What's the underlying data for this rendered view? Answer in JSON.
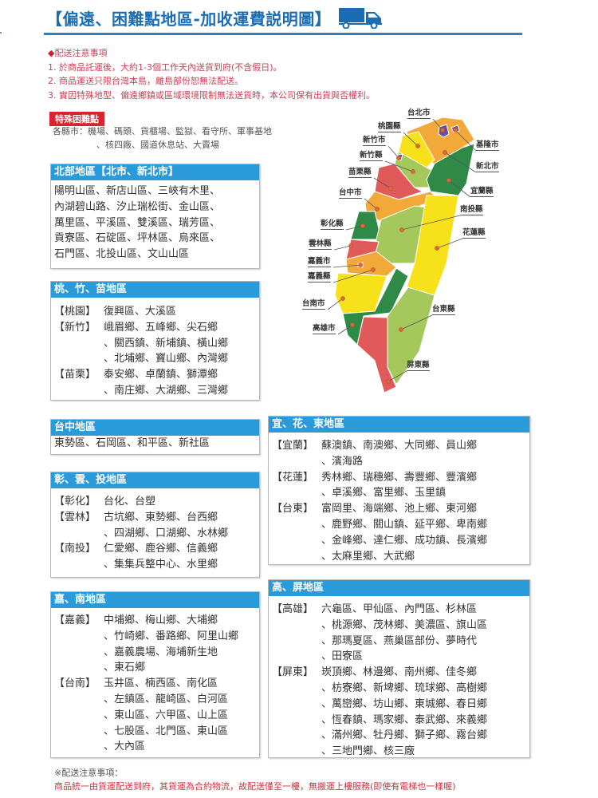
{
  "header": {
    "title": "【偏遠、困難點地區-加收運費説明圖】",
    "icon": "truck-icon"
  },
  "notes": {
    "heading": "配送注意事項",
    "items": [
      "1. 於商品託運後，大約1-3個工作天內送貨到府(不含假日)。",
      "2. 商品運送只限台灣本島，離島部份恕無法配送。",
      "3. 實因特殊地型、偏遠鄉鎮或區域環境限制無法送貨時，本公司保有出貨與否權利。"
    ]
  },
  "special": {
    "badge": "特殊困難點",
    "lines": [
      "各縣市：機場、碼頭、貨櫃場、監獄、看守所、軍事基地",
      "、核四廠、國道休息站、大賣場"
    ]
  },
  "regions": {
    "north": {
      "title": "北部地區【北市、新北市】",
      "lines": [
        "陽明山區、新店山區、三峽有木里、",
        "內湖碧山路、汐止瑞松街、金山區、",
        "萬里區、平溪區、雙溪區、瑞芳區、",
        "貢寮區、石碇區、坪林區、烏來區、",
        "石門區、北投山區、文山山區"
      ]
    },
    "tzm": {
      "title": "桃、竹、苗地區",
      "rows": [
        {
          "tag": "【桃園】",
          "text": "復興區、大溪區"
        },
        {
          "tag": "【新竹】",
          "text": "峨眉鄉、五峰鄉、尖石鄉"
        },
        {
          "tag": "",
          "text": "、關西鎮、新埔鎮、橫山鄉"
        },
        {
          "tag": "",
          "text": "、北埔鄉、寶山鄉、內灣鄉"
        },
        {
          "tag": "【苗栗】",
          "text": "泰安鄉、卓蘭鎮、獅潭鄉"
        },
        {
          "tag": "",
          "text": "、南庄鄉、大湖鄉、三灣鄉"
        }
      ]
    },
    "taichung": {
      "title": "台中地區",
      "lines": [
        "東勢區、石岡區、和平區、新社區"
      ]
    },
    "cyn": {
      "title": "彰、雲、投地區",
      "rows": [
        {
          "tag": "【彰化】",
          "text": "台化、台塑"
        },
        {
          "tag": "【雲林】",
          "text": "古坑鄉、東勢鄉、台西鄉"
        },
        {
          "tag": "",
          "text": "、四湖鄉、口湖鄉、水林鄉"
        },
        {
          "tag": "【南投】",
          "text": "仁愛鄉、鹿谷鄉、信義鄉"
        },
        {
          "tag": "",
          "text": "、集集兵整中心、水里鄉"
        }
      ]
    },
    "cn": {
      "title": "嘉、南地區",
      "rows": [
        {
          "tag": "【嘉義】",
          "text": "中埔鄉、梅山鄉、大埔鄉"
        },
        {
          "tag": "",
          "text": "、竹崎鄉、番路鄉、阿里山鄉"
        },
        {
          "tag": "",
          "text": "、嘉義農場、海埔新生地"
        },
        {
          "tag": "",
          "text": "、東石鄉"
        },
        {
          "tag": "【台南】",
          "text": "玉井區、楠西區、南化區"
        },
        {
          "tag": "",
          "text": "、左鎮區、龍崎區、白河區"
        },
        {
          "tag": "",
          "text": "、東山區、六甲區、山上區"
        },
        {
          "tag": "",
          "text": "、七股區、北門區、東山區"
        },
        {
          "tag": "",
          "text": "、大內區"
        }
      ]
    },
    "yhd": {
      "title": "宜、花、東地區",
      "rows": [
        {
          "tag": "【宜蘭】",
          "text": "蘇澳鎮、南澳鄉、大同鄉、員山鄉"
        },
        {
          "tag": "",
          "text": "、濱海路"
        },
        {
          "tag": "【花蓮】",
          "text": "秀林鄉、瑞穗鄉、壽豐鄉、豐濱鄉"
        },
        {
          "tag": "",
          "text": "、卓溪鄉、富里鄉、玉里鎮"
        },
        {
          "tag": "【台東】",
          "text": "富岡里、海端鄉、池上鄉、東河鄉"
        },
        {
          "tag": "",
          "text": "、鹿野鄉、關山鎮、延平鄉、卑南鄉"
        },
        {
          "tag": "",
          "text": "、金峰鄉、達仁鄉、成功鎮、長濱鄉"
        },
        {
          "tag": "",
          "text": "、太麻里鄉、大武鄉"
        }
      ]
    },
    "kp": {
      "title": "高、屏地區",
      "rows": [
        {
          "tag": "【高雄】",
          "text": "六龜區、甲仙區、內門區、杉林區"
        },
        {
          "tag": "",
          "text": "、桃源鄉、茂林鄉、美濃區、旗山區"
        },
        {
          "tag": "",
          "text": "、那瑪夏區、燕巢區部份、夢時代"
        },
        {
          "tag": "",
          "text": "、田寮區"
        },
        {
          "tag": "【屏東】",
          "text": "崁頂鄉、林邊鄉、南州鄉、佳冬鄉"
        },
        {
          "tag": "",
          "text": "、枋寮鄉、新埤鄉、琉球鄉、高樹鄉"
        },
        {
          "tag": "",
          "text": "、萬巒鄉、坊山鄉、東城鄉、春日鄉"
        },
        {
          "tag": "",
          "text": "、恆春鎮、瑪家鄉、泰武鄉、來義鄉"
        },
        {
          "tag": "",
          "text": "、滿州鄉、牡丹鄉、獅子鄉、霧台鄉"
        },
        {
          "tag": "",
          "text": "、三地門鄉、核三廠"
        }
      ]
    }
  },
  "map": {
    "labels": [
      "台北市",
      "桃園縣",
      "新竹市",
      "新竹縣",
      "苗栗縣",
      "台中市",
      "彰化縣",
      "雲林縣",
      "嘉義市",
      "嘉義縣",
      "台南市",
      "高雄市",
      "屏東縣",
      "台東縣",
      "花蓮縣",
      "南投縣",
      "宜蘭縣",
      "新北市",
      "基隆市"
    ],
    "colors": {
      "yellow": "#f7e11b",
      "orange": "#f3a93a",
      "red": "#e05a5a",
      "dark_green": "#2f8a47",
      "light_green": "#a5c85c",
      "purple": "#6a4fa0"
    }
  },
  "footer": {
    "heading": "※配送注意事項：",
    "text": "商品統一由貨運配送到府，其貨運為合約物流，故配送僅至一樓，無搬運上樓服務(即使有電梯也一樣喔)"
  },
  "colors": {
    "title_blue": "#1b6db3",
    "header_blue": "#2a9bd8",
    "note_red": "#c94155",
    "badge_red": "#d9232e"
  }
}
